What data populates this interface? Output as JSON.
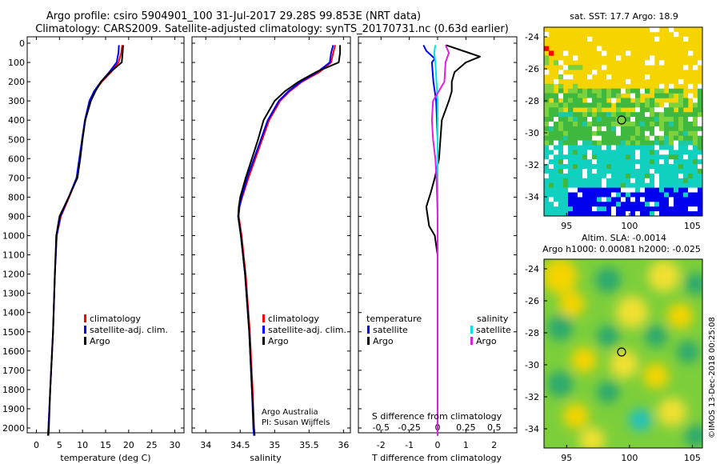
{
  "header": {
    "title_line1": "Argo profile: csiro 5904901_100 31-Jul-2017 29.28S 99.853E (NRT data)",
    "title_line2": "Climatology: CARS2009. Satellite-adjusted climatology: synTS_20170731.nc (0.63d earlier)"
  },
  "colors": {
    "climatology": "#ff0000",
    "satellite": "#0000ff",
    "argo": "#000000",
    "sat_salinity": "#00e5e5",
    "argo_salinity": "#e020e0"
  },
  "depth_axis": {
    "ticks": [
      0,
      100,
      200,
      300,
      400,
      500,
      600,
      700,
      800,
      900,
      1000,
      1100,
      1200,
      1300,
      1400,
      1500,
      1600,
      1700,
      1800,
      1900,
      2000
    ],
    "range": [
      0,
      2060
    ]
  },
  "chart_data": [
    {
      "type": "line",
      "name": "temperature",
      "xlabel": "temperature (deg C)",
      "xlim": [
        -2,
        32
      ],
      "xticks": [
        0,
        5,
        10,
        15,
        20,
        25,
        30
      ],
      "ylim": [
        0,
        2060
      ],
      "legend": [
        "climatology",
        "satellite-adj. clim.",
        "Argo"
      ],
      "series": [
        {
          "name": "climatology",
          "depth": [
            10,
            50,
            100,
            150,
            200,
            250,
            300,
            400,
            500,
            600,
            700,
            800,
            900,
            1000,
            1200,
            1500,
            1800,
            2000,
            2040
          ],
          "values": [
            18.6,
            18.4,
            17.8,
            16.2,
            14.2,
            12.6,
            11.6,
            10.6,
            9.9,
            9.4,
            8.8,
            7.1,
            5.3,
            4.4,
            4.0,
            3.6,
            3.0,
            2.6,
            2.5
          ]
        },
        {
          "name": "satellite-adj. clim.",
          "depth": [
            10,
            50,
            100,
            150,
            200,
            250,
            300,
            400,
            500,
            600,
            700,
            800,
            900,
            1000,
            1200,
            1500,
            1800,
            2000,
            2040
          ],
          "values": [
            17.9,
            17.8,
            17.4,
            15.8,
            14.0,
            12.5,
            11.5,
            10.5,
            9.9,
            9.3,
            8.7,
            7.0,
            5.2,
            4.4,
            4.0,
            3.6,
            3.0,
            2.6,
            2.5
          ]
        },
        {
          "name": "Argo",
          "depth": [
            10,
            50,
            100,
            150,
            200,
            250,
            300,
            400,
            500,
            600,
            700,
            800,
            900,
            1000,
            1200,
            1500,
            1800,
            2000,
            2040
          ],
          "values": [
            18.8,
            18.7,
            18.5,
            16.0,
            14.0,
            12.8,
            11.8,
            10.6,
            10.0,
            9.5,
            8.9,
            7.0,
            5.0,
            4.3,
            4.0,
            3.6,
            3.0,
            2.7,
            2.6
          ]
        }
      ]
    },
    {
      "type": "line",
      "name": "salinity",
      "xlabel": "salinity",
      "xlim": [
        33.8,
        36.1
      ],
      "xticks": [
        34,
        34.5,
        35,
        35.5,
        36
      ],
      "ylim": [
        0,
        2060
      ],
      "legend": [
        "climatology",
        "satellite-adj. clim.",
        "Argo"
      ],
      "series": [
        {
          "name": "climatology",
          "depth": [
            10,
            50,
            100,
            150,
            200,
            250,
            300,
            400,
            500,
            600,
            700,
            800,
            850,
            900,
            1000,
            1200,
            1500,
            1800,
            2000,
            2040
          ],
          "values": [
            35.88,
            35.85,
            35.82,
            35.65,
            35.4,
            35.22,
            35.08,
            34.92,
            34.82,
            34.72,
            34.62,
            34.53,
            34.49,
            34.48,
            34.52,
            34.58,
            34.64,
            34.68,
            34.7,
            34.71
          ]
        },
        {
          "name": "satellite-adj. clim.",
          "depth": [
            10,
            50,
            100,
            150,
            200,
            250,
            300,
            400,
            500,
            600,
            700,
            800,
            850,
            900,
            1000,
            1200,
            1500,
            1800,
            2000,
            2040
          ],
          "values": [
            35.85,
            35.82,
            35.8,
            35.62,
            35.38,
            35.2,
            35.06,
            34.9,
            34.8,
            34.7,
            34.6,
            34.52,
            34.49,
            34.47,
            34.51,
            34.57,
            34.63,
            34.67,
            34.69,
            34.7
          ]
        },
        {
          "name": "Argo",
          "depth": [
            10,
            50,
            100,
            150,
            200,
            250,
            300,
            400,
            500,
            600,
            700,
            800,
            850,
            900,
            1000,
            1200,
            1500,
            1800,
            2000,
            2040
          ],
          "values": [
            35.95,
            35.95,
            35.93,
            35.6,
            35.35,
            35.15,
            35.0,
            34.84,
            34.76,
            34.67,
            34.58,
            34.5,
            34.48,
            34.47,
            34.51,
            34.57,
            34.63,
            34.67,
            34.7,
            34.71
          ]
        }
      ],
      "annotation": [
        "Argo Australia",
        "PI: Susan Wijffels"
      ]
    },
    {
      "type": "line",
      "name": "differences",
      "xlabel": "T difference from climatology",
      "xlabel_top": "S difference from climatology",
      "xlim": [
        -2.8,
        2.8
      ],
      "xticks": [
        -2,
        -1,
        0,
        1,
        2
      ],
      "xticks_s": [
        -0.5,
        -0.25,
        0,
        0.25,
        0.5
      ],
      "xticks_s_labels": [
        "-0.5",
        "-0.25",
        "0",
        "0.25",
        "0.5"
      ],
      "ylim": [
        0,
        2060
      ],
      "legend_left_title": "temperature",
      "legend_right_title": "salinity",
      "legend_left": [
        "satellite",
        "Argo"
      ],
      "legend_right": [
        "satellite",
        "Argo"
      ],
      "series": [
        {
          "name": "T satellite",
          "depth": [
            10,
            40,
            80,
            100,
            200,
            300,
            500,
            700,
            900,
            1100,
            1500,
            2040
          ],
          "values": [
            -0.5,
            -0.4,
            -0.1,
            -0.2,
            -0.15,
            -0.05,
            0.0,
            0.0,
            0.0,
            0.0,
            0.0,
            0.0
          ]
        },
        {
          "name": "T Argo",
          "depth": [
            10,
            50,
            70,
            100,
            150,
            200,
            250,
            300,
            400,
            500,
            600,
            700,
            780,
            850,
            900,
            950,
            1000,
            1050,
            1100,
            1200,
            1500,
            2040
          ],
          "values": [
            0.3,
            1.1,
            1.5,
            1.0,
            0.6,
            0.5,
            0.5,
            0.4,
            0.15,
            0.1,
            0.05,
            -0.1,
            -0.25,
            -0.4,
            -0.35,
            -0.3,
            -0.1,
            -0.05,
            0.0,
            0.0,
            0.0,
            0.0
          ]
        },
        {
          "name": "S satellite",
          "depth": [
            10,
            50,
            100,
            200,
            300,
            500,
            700,
            900,
            1100,
            1500,
            2040
          ],
          "values": [
            -0.02,
            -0.03,
            -0.02,
            -0.01,
            0.0,
            0.0,
            0.0,
            0.0,
            0.0,
            0.0,
            0.0
          ]
        },
        {
          "name": "S Argo",
          "depth": [
            10,
            50,
            100,
            200,
            300,
            400,
            500,
            600,
            700,
            900,
            1100,
            1500,
            2040
          ],
          "values": [
            0.07,
            0.1,
            0.07,
            0.06,
            -0.04,
            -0.05,
            -0.04,
            -0.02,
            -0.01,
            0.0,
            0.0,
            0.0,
            0.0
          ]
        }
      ]
    }
  ],
  "maps": {
    "sst": {
      "title": "sat. SST: 17.7  Argo: 18.9",
      "subtitle": "Altim. SLA: -0.0014"
    },
    "sla": {
      "title": "Argo h1000: 0.00081 h2000: -0.025"
    },
    "lat_ticks": [
      -24,
      -26,
      -28,
      -30,
      -32,
      -34
    ],
    "lat_labels": [
      "-24",
      "-26",
      "-28",
      "-30",
      "-32",
      "-34"
    ],
    "lon_ticks": [
      95,
      100,
      105
    ],
    "lon_labels": [
      "95",
      "100",
      "105"
    ]
  },
  "footer": "©IMOS 13-Dec-2018 00:25:08"
}
